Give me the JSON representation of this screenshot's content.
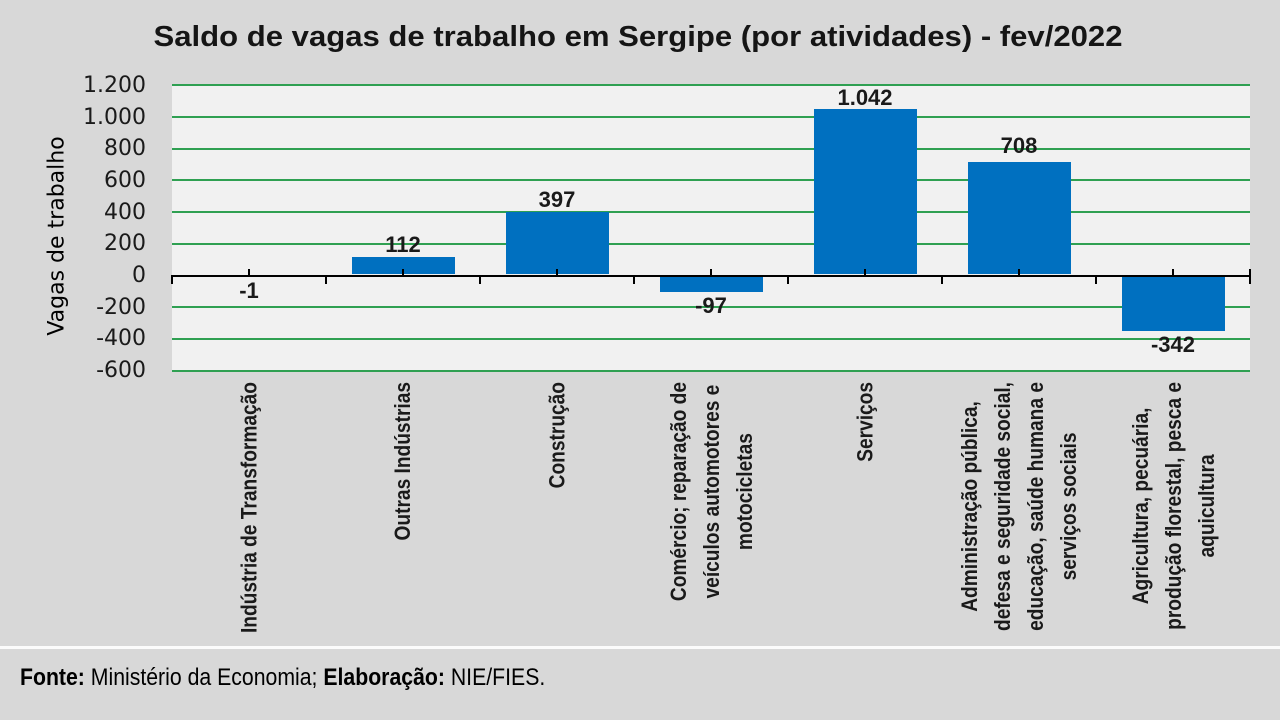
{
  "chart_data": {
    "type": "bar",
    "title": "Saldo de vagas de trabalho em Sergipe (por atividades) - fev/2022",
    "ylabel": "Vagas de trabalho",
    "xlabel": "",
    "categories": [
      "Indústria de Transformação",
      "Outras Indústrias",
      "Construção",
      "Comércio; reparação de veículos automotores e motocicletas",
      "Serviços",
      "Administração pública, defesa e seguridade social, educação, saúde humana e serviços sociais",
      "Agricultura, pecuária, produção florestal, pesca e aquicultura"
    ],
    "category_label_lines": [
      [
        "Indústria de Transformação"
      ],
      [
        "Outras Indústrias"
      ],
      [
        "Construção"
      ],
      [
        "Comércio; reparação de",
        "veículos automotores e",
        "motocicletas"
      ],
      [
        "Serviços"
      ],
      [
        "Administração pública,",
        "defesa e seguridade social,",
        "educação, saúde humana e",
        "serviços sociais"
      ],
      [
        "Agricultura, pecuária,",
        "produção florestal, pesca e",
        "aquicultura"
      ]
    ],
    "values": [
      -1,
      112,
      397,
      -97,
      1042,
      708,
      -342
    ],
    "data_labels": [
      "-1",
      "112",
      "397",
      "-97",
      "1.042",
      "708",
      "-342"
    ],
    "y_ticks": [
      {
        "value": 1200,
        "label": "1.200"
      },
      {
        "value": 1000,
        "label": "1.000"
      },
      {
        "value": 800,
        "label": "800"
      },
      {
        "value": 600,
        "label": "600"
      },
      {
        "value": 400,
        "label": "400"
      },
      {
        "value": 200,
        "label": "200"
      },
      {
        "value": 0,
        "label": "0"
      },
      {
        "value": -200,
        "label": "-200"
      },
      {
        "value": -400,
        "label": "-400"
      },
      {
        "value": -600,
        "label": "-600"
      }
    ],
    "ylim": [
      -600,
      1200
    ],
    "grid": true,
    "legend": false,
    "colors": {
      "bar": "#0070C0",
      "gridline": "#2FA052",
      "plot_background": "#F1F1F1",
      "page_background": "#D8D8D8",
      "axis": "#000000",
      "title_text": "#151515",
      "label_text": "#1A1A1A",
      "separator": "#FBFBFB"
    }
  },
  "footer": {
    "source_label": "Fonte:",
    "source_text": " Ministério da Economia; ",
    "elaboration_label": "Elaboração:",
    "elaboration_text": " NIE/FIES."
  }
}
